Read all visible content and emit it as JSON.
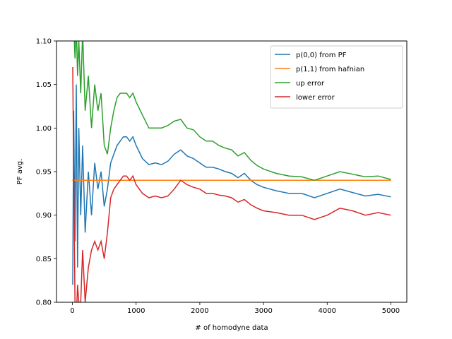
{
  "chart_data": {
    "type": "line",
    "title": "",
    "xlabel": "# of homodyne data",
    "ylabel": "PF avg.",
    "xlim": [
      -250,
      5250
    ],
    "ylim": [
      0.8,
      1.1
    ],
    "xticks": [
      0,
      1000,
      2000,
      3000,
      4000,
      5000
    ],
    "yticks": [
      0.8,
      0.85,
      0.9,
      0.95,
      1.0,
      1.05,
      1.1
    ],
    "xtick_labels": [
      "0",
      "1000",
      "2000",
      "3000",
      "4000",
      "5000"
    ],
    "ytick_labels": [
      "0.80",
      "0.85",
      "0.90",
      "0.95",
      "1.00",
      "1.05",
      "1.10"
    ],
    "grid": false,
    "legend_position": "top-right",
    "series": [
      {
        "name": "p(0,0) from PF",
        "color": "#1f77b4",
        "x": [
          5,
          20,
          40,
          60,
          80,
          100,
          130,
          160,
          200,
          250,
          300,
          350,
          400,
          450,
          500,
          550,
          600,
          650,
          700,
          750,
          800,
          850,
          900,
          950,
          1000,
          1100,
          1200,
          1300,
          1400,
          1500,
          1600,
          1700,
          1800,
          1900,
          2000,
          2100,
          2200,
          2300,
          2400,
          2500,
          2600,
          2700,
          2800,
          2900,
          3000,
          3200,
          3400,
          3600,
          3800,
          4000,
          4200,
          4400,
          4600,
          4800,
          5000
        ],
        "y": [
          0.82,
          1.02,
          0.87,
          1.05,
          0.84,
          1.0,
          0.9,
          0.98,
          0.88,
          0.95,
          0.9,
          0.96,
          0.93,
          0.95,
          0.91,
          0.93,
          0.96,
          0.97,
          0.98,
          0.985,
          0.99,
          0.99,
          0.985,
          0.99,
          0.98,
          0.965,
          0.958,
          0.96,
          0.958,
          0.962,
          0.97,
          0.975,
          0.968,
          0.965,
          0.96,
          0.955,
          0.955,
          0.953,
          0.95,
          0.948,
          0.943,
          0.948,
          0.94,
          0.935,
          0.932,
          0.928,
          0.925,
          0.925,
          0.92,
          0.925,
          0.93,
          0.926,
          0.922,
          0.924,
          0.921
        ]
      },
      {
        "name": "p(1,1) from hafnian",
        "color": "#ff7f0e",
        "x": [
          0,
          5000
        ],
        "y": [
          0.94,
          0.94
        ]
      },
      {
        "name": "up error",
        "color": "#2ca02c",
        "x": [
          5,
          20,
          40,
          60,
          80,
          100,
          130,
          160,
          200,
          250,
          300,
          350,
          400,
          450,
          500,
          550,
          600,
          650,
          700,
          750,
          800,
          850,
          900,
          950,
          1000,
          1100,
          1200,
          1300,
          1400,
          1500,
          1600,
          1700,
          1800,
          1900,
          2000,
          2100,
          2200,
          2300,
          2400,
          2500,
          2600,
          2700,
          2800,
          2900,
          3000,
          3200,
          3400,
          3600,
          3800,
          4000,
          4200,
          4400,
          4600,
          4800,
          5000
        ],
        "y": [
          1.1,
          1.12,
          1.08,
          1.12,
          1.06,
          1.1,
          1.04,
          1.11,
          1.02,
          1.06,
          1.0,
          1.05,
          1.02,
          1.04,
          0.98,
          0.97,
          1.0,
          1.02,
          1.035,
          1.04,
          1.04,
          1.04,
          1.035,
          1.04,
          1.03,
          1.015,
          1.0,
          1.0,
          1.0,
          1.003,
          1.008,
          1.01,
          1.0,
          0.998,
          0.99,
          0.985,
          0.985,
          0.98,
          0.977,
          0.975,
          0.968,
          0.972,
          0.963,
          0.957,
          0.953,
          0.948,
          0.945,
          0.944,
          0.94,
          0.945,
          0.95,
          0.947,
          0.944,
          0.945,
          0.941
        ]
      },
      {
        "name": "lower error",
        "color": "#d62728",
        "x": [
          5,
          20,
          40,
          60,
          80,
          100,
          130,
          160,
          200,
          250,
          300,
          350,
          400,
          450,
          500,
          550,
          600,
          650,
          700,
          750,
          800,
          850,
          900,
          950,
          1000,
          1100,
          1200,
          1300,
          1400,
          1500,
          1600,
          1700,
          1800,
          1900,
          2000,
          2100,
          2200,
          2300,
          2400,
          2500,
          2600,
          2700,
          2800,
          2900,
          3000,
          3200,
          3400,
          3600,
          3800,
          4000,
          4200,
          4400,
          4600,
          4800,
          5000
        ],
        "y": [
          1.07,
          0.95,
          0.8,
          0.78,
          0.82,
          0.8,
          0.8,
          0.86,
          0.8,
          0.84,
          0.86,
          0.87,
          0.86,
          0.87,
          0.85,
          0.88,
          0.92,
          0.93,
          0.935,
          0.94,
          0.945,
          0.945,
          0.94,
          0.945,
          0.935,
          0.925,
          0.92,
          0.922,
          0.92,
          0.922,
          0.93,
          0.94,
          0.935,
          0.932,
          0.93,
          0.925,
          0.925,
          0.923,
          0.922,
          0.92,
          0.915,
          0.918,
          0.912,
          0.908,
          0.905,
          0.903,
          0.9,
          0.9,
          0.895,
          0.9,
          0.908,
          0.905,
          0.9,
          0.903,
          0.9
        ]
      }
    ]
  }
}
